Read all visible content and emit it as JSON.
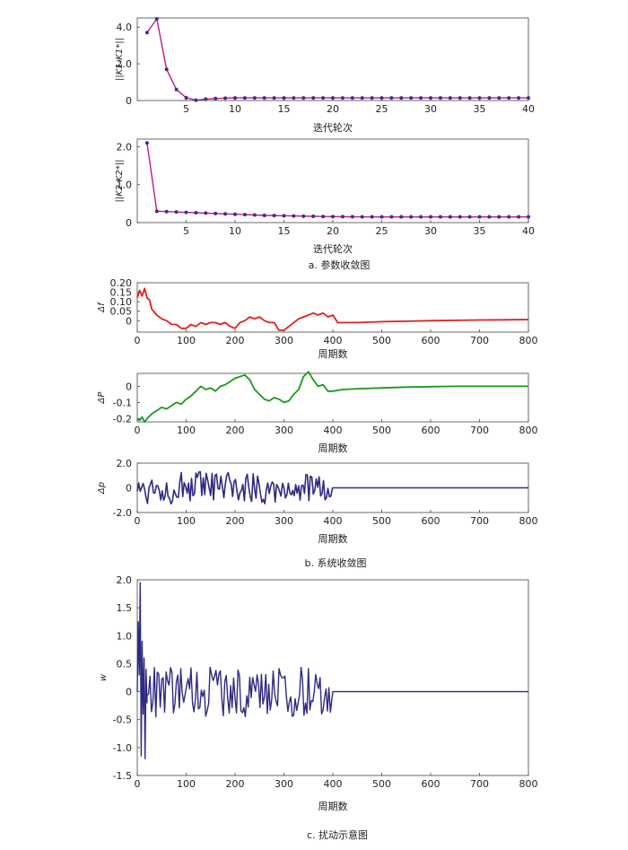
{
  "captions": {
    "a": "a. 参数收敛图",
    "b": "b. 系统收敛图",
    "c": "c. 扰动示意图"
  },
  "colors": {
    "line_magenta": "#c2188c",
    "marker": "#3a2f8f",
    "red": "#e02020",
    "green": "#1a9a1a",
    "navy": "#2e2a82",
    "axis": "#444444"
  },
  "chart_data": [
    {
      "id": "k1",
      "type": "line",
      "xlabel": "迭代轮次",
      "ylabel": "||K1-K1*||",
      "xlim": [
        0,
        40
      ],
      "ylim": [
        0,
        4.5
      ],
      "xticks": [
        5,
        10,
        15,
        20,
        25,
        30,
        35,
        40
      ],
      "yticks": [
        0,
        2.0,
        4.0
      ],
      "ytick_labels": [
        "0",
        "2.0",
        "4.0"
      ],
      "markers": true,
      "x": [
        1,
        2,
        3,
        4,
        5,
        6,
        7,
        8,
        9,
        10,
        11,
        12,
        13,
        14,
        15,
        16,
        17,
        18,
        19,
        20,
        21,
        22,
        23,
        24,
        25,
        26,
        27,
        28,
        29,
        30,
        31,
        32,
        33,
        34,
        35,
        36,
        37,
        38,
        39,
        40
      ],
      "y": [
        3.7,
        4.45,
        1.7,
        0.6,
        0.15,
        0.02,
        0.08,
        0.11,
        0.13,
        0.14,
        0.14,
        0.14,
        0.14,
        0.14,
        0.14,
        0.14,
        0.14,
        0.14,
        0.14,
        0.14,
        0.14,
        0.14,
        0.14,
        0.14,
        0.14,
        0.14,
        0.14,
        0.14,
        0.14,
        0.14,
        0.14,
        0.14,
        0.14,
        0.14,
        0.14,
        0.14,
        0.14,
        0.14,
        0.14,
        0.14
      ]
    },
    {
      "id": "k2",
      "type": "line",
      "xlabel": "迭代轮次",
      "ylabel": "||K2-K2*||",
      "xlim": [
        0,
        40
      ],
      "ylim": [
        0,
        2.2
      ],
      "xticks": [
        5,
        10,
        15,
        20,
        25,
        30,
        35,
        40
      ],
      "yticks": [
        0,
        1.0,
        2.0
      ],
      "ytick_labels": [
        "0",
        "1.0",
        "2.0"
      ],
      "markers": true,
      "x": [
        1,
        2,
        3,
        4,
        5,
        6,
        7,
        8,
        9,
        10,
        11,
        12,
        13,
        14,
        15,
        16,
        17,
        18,
        19,
        20,
        21,
        22,
        23,
        24,
        25,
        26,
        27,
        28,
        29,
        30,
        31,
        32,
        33,
        34,
        35,
        36,
        37,
        38,
        39,
        40
      ],
      "y": [
        2.1,
        0.3,
        0.29,
        0.28,
        0.27,
        0.26,
        0.25,
        0.24,
        0.23,
        0.22,
        0.21,
        0.2,
        0.19,
        0.185,
        0.18,
        0.175,
        0.17,
        0.165,
        0.16,
        0.158,
        0.156,
        0.154,
        0.152,
        0.15,
        0.15,
        0.15,
        0.15,
        0.15,
        0.15,
        0.15,
        0.15,
        0.15,
        0.15,
        0.15,
        0.15,
        0.15,
        0.15,
        0.15,
        0.15,
        0.15
      ]
    },
    {
      "id": "df",
      "type": "line",
      "xlabel": "周期数",
      "ylabel": "Δf",
      "xlim": [
        0,
        800
      ],
      "ylim": [
        -0.06,
        0.2
      ],
      "xticks": [
        0,
        100,
        200,
        300,
        400,
        500,
        600,
        700,
        800
      ],
      "yticks": [
        0,
        0.05,
        0.1,
        0.15,
        0.2
      ],
      "ytick_labels": [
        "0",
        "0.05",
        "0.10",
        "0.15",
        "0.20"
      ],
      "x": [
        0,
        5,
        10,
        15,
        20,
        25,
        30,
        40,
        50,
        60,
        70,
        80,
        90,
        100,
        110,
        120,
        130,
        140,
        150,
        160,
        170,
        180,
        190,
        200,
        210,
        220,
        230,
        240,
        250,
        260,
        270,
        280,
        290,
        300,
        310,
        320,
        330,
        340,
        350,
        360,
        370,
        380,
        390,
        400,
        410,
        450,
        500,
        550,
        600,
        650,
        700,
        750,
        800
      ],
      "y": [
        0.12,
        0.16,
        0.13,
        0.17,
        0.12,
        0.11,
        0.06,
        0.03,
        0.01,
        0.0,
        -0.02,
        -0.02,
        -0.04,
        -0.04,
        -0.02,
        -0.03,
        -0.01,
        -0.02,
        -0.01,
        -0.01,
        -0.02,
        -0.01,
        -0.03,
        -0.04,
        -0.01,
        0.0,
        0.02,
        0.01,
        0.02,
        0.0,
        -0.01,
        -0.01,
        -0.05,
        -0.05,
        -0.03,
        -0.01,
        0.01,
        0.02,
        0.03,
        0.04,
        0.03,
        0.04,
        0.02,
        0.03,
        -0.01,
        -0.01,
        -0.005,
        -0.003,
        0.0,
        0.002,
        0.004,
        0.005,
        0.006
      ]
    },
    {
      "id": "dP",
      "type": "line",
      "xlabel": "周期数",
      "ylabel": "ΔP",
      "xlim": [
        0,
        800
      ],
      "ylim": [
        -0.22,
        0.08
      ],
      "xticks": [
        0,
        100,
        200,
        300,
        400,
        500,
        600,
        700,
        800
      ],
      "yticks": [
        -0.2,
        -0.1,
        0
      ],
      "ytick_labels": [
        "-0.2",
        "-0.1",
        "0"
      ],
      "x": [
        0,
        5,
        10,
        15,
        20,
        30,
        40,
        50,
        60,
        70,
        80,
        90,
        100,
        110,
        120,
        130,
        140,
        150,
        160,
        170,
        180,
        190,
        200,
        210,
        220,
        230,
        240,
        250,
        260,
        270,
        280,
        290,
        300,
        310,
        320,
        330,
        340,
        350,
        360,
        370,
        380,
        390,
        400,
        420,
        450,
        500,
        550,
        600,
        650,
        700,
        750,
        800
      ],
      "y": [
        -0.2,
        -0.21,
        -0.19,
        -0.22,
        -0.2,
        -0.17,
        -0.15,
        -0.13,
        -0.14,
        -0.12,
        -0.1,
        -0.11,
        -0.08,
        -0.06,
        -0.03,
        0.0,
        -0.02,
        -0.01,
        -0.03,
        0.0,
        0.01,
        0.03,
        0.05,
        0.06,
        0.07,
        0.04,
        -0.02,
        -0.05,
        -0.08,
        -0.09,
        -0.07,
        -0.08,
        -0.1,
        -0.09,
        -0.05,
        -0.02,
        0.06,
        0.09,
        0.04,
        0.0,
        0.01,
        -0.03,
        -0.03,
        -0.02,
        -0.015,
        -0.01,
        -0.005,
        -0.002,
        0.0,
        0.0,
        0.0,
        0.0
      ]
    },
    {
      "id": "dp",
      "type": "line",
      "xlabel": "周期数",
      "ylabel": "Δp",
      "xlim": [
        0,
        800
      ],
      "ylim": [
        -2.0,
        2.0
      ],
      "xticks": [
        0,
        100,
        200,
        300,
        400,
        500,
        600,
        700,
        800
      ],
      "yticks": [
        -2.0,
        0,
        2.0
      ],
      "ytick_labels": [
        "-2.0",
        "0",
        "2.0"
      ],
      "noise_segment": {
        "x_start": 0,
        "x_end": 400,
        "x_step": 3,
        "amplitude": 1.3
      },
      "x": [
        400,
        800
      ],
      "y": [
        0,
        0
      ]
    },
    {
      "id": "w",
      "type": "line",
      "xlabel": "周期数",
      "ylabel": "w",
      "xlim": [
        0,
        800
      ],
      "ylim": [
        -1.5,
        2.0
      ],
      "xticks": [
        0,
        100,
        200,
        300,
        400,
        500,
        600,
        700,
        800
      ],
      "yticks": [
        -1.5,
        -1.0,
        -0.5,
        0,
        0.5,
        1.0,
        1.5,
        2.0
      ],
      "ytick_labels": [
        "-1.5",
        "-1.0",
        "-0.5",
        "0",
        "0.5",
        "1.0",
        "1.5",
        "2.0"
      ],
      "x": [
        0,
        2,
        4,
        6,
        8,
        10,
        12,
        14,
        16,
        18,
        20
      ],
      "y": [
        0,
        1.25,
        0.3,
        1.95,
        -1.15,
        0.9,
        -0.4,
        0.6,
        -1.2,
        0.4,
        -0.2
      ],
      "noise_segment": {
        "x_start": 20,
        "x_end": 400,
        "x_step": 3,
        "amplitude": 0.45
      },
      "tail": {
        "x": [
          400,
          800
        ],
        "y": [
          0,
          0
        ]
      }
    }
  ]
}
